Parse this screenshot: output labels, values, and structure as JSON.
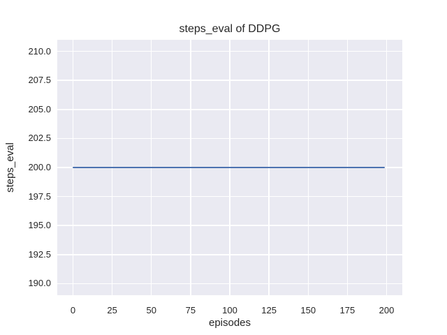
{
  "chart_data": {
    "type": "line",
    "title": "steps_eval of DDPG",
    "xlabel": "episodes",
    "ylabel": "steps_eval",
    "xlim": [
      -10,
      210
    ],
    "ylim": [
      189,
      211
    ],
    "xticks": [
      0,
      25,
      50,
      75,
      100,
      125,
      150,
      175,
      200
    ],
    "xtick_labels": [
      "0",
      "25",
      "50",
      "75",
      "100",
      "125",
      "150",
      "175",
      "200"
    ],
    "yticks": [
      190.0,
      192.5,
      195.0,
      197.5,
      200.0,
      202.5,
      205.0,
      207.5,
      210.0
    ],
    "ytick_labels": [
      "190.0",
      "192.5",
      "195.0",
      "197.5",
      "200.0",
      "202.5",
      "205.0",
      "207.5",
      "210.0"
    ],
    "grid": true,
    "legend": false,
    "series": [
      {
        "name": "steps_eval",
        "color": "#4c72b0",
        "x": [
          0,
          199
        ],
        "y": [
          200,
          200
        ]
      }
    ],
    "style": {
      "figure_bg": "#ffffff",
      "plot_bg": "#eaeaf2",
      "grid_color": "#ffffff",
      "text_color": "#262626"
    }
  }
}
